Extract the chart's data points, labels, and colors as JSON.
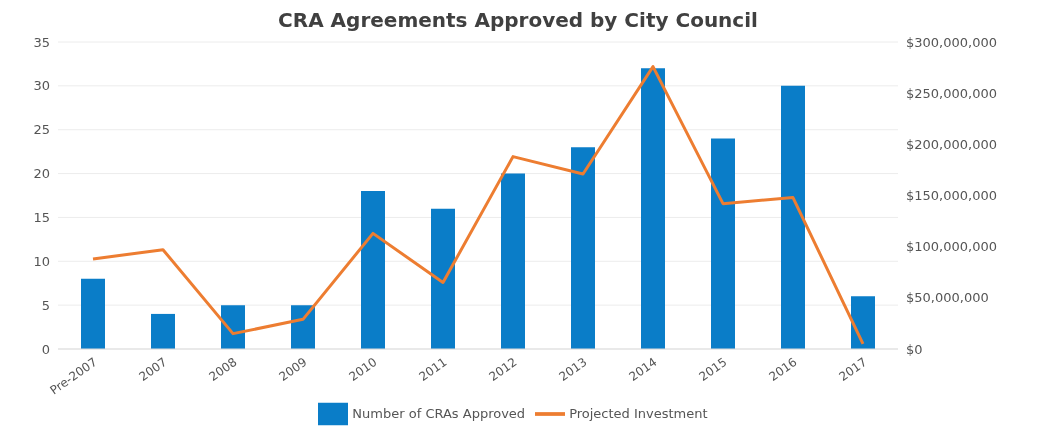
{
  "chart_data": {
    "type": "bar",
    "title": "CRA Agreements Approved by City Council",
    "categories": [
      "Pre-2007",
      "2007",
      "2008",
      "2009",
      "2010",
      "2011",
      "2012",
      "2013",
      "2014",
      "2015",
      "2016",
      "2017"
    ],
    "series": [
      {
        "name": "Number of CRAs Approved",
        "color": "#0a7dc8",
        "values": [
          8,
          4,
          5,
          5,
          18,
          16,
          20,
          23,
          32,
          24,
          30,
          6
        ]
      },
      {
        "name": "Projected Investment",
        "type": "line",
        "axis": "y2",
        "color": "#ed7d31",
        "values": [
          88000000,
          97000000,
          15000000,
          29000000,
          113000000,
          65000000,
          188000000,
          171000000,
          276000000,
          142000000,
          148000000,
          5000000
        ]
      }
    ],
    "ylim": [
      0,
      35
    ],
    "yticks": [
      0,
      5,
      10,
      15,
      20,
      25,
      30,
      35
    ],
    "y2lim": [
      0,
      300000000
    ],
    "y2ticks": [
      {
        "value": 0,
        "label": "$0"
      },
      {
        "value": 50000000,
        "label": "$50,000,000"
      },
      {
        "value": 100000000,
        "label": "$100,000,000"
      },
      {
        "value": 150000000,
        "label": "$150,000,000"
      },
      {
        "value": 200000000,
        "label": "$200,000,000"
      },
      {
        "value": 250000000,
        "label": "$250,000,000"
      },
      {
        "value": 300000000,
        "label": "$300,000,000"
      }
    ],
    "grid": "y",
    "legend": "bottom",
    "marker": "none",
    "line_style": "solid"
  }
}
